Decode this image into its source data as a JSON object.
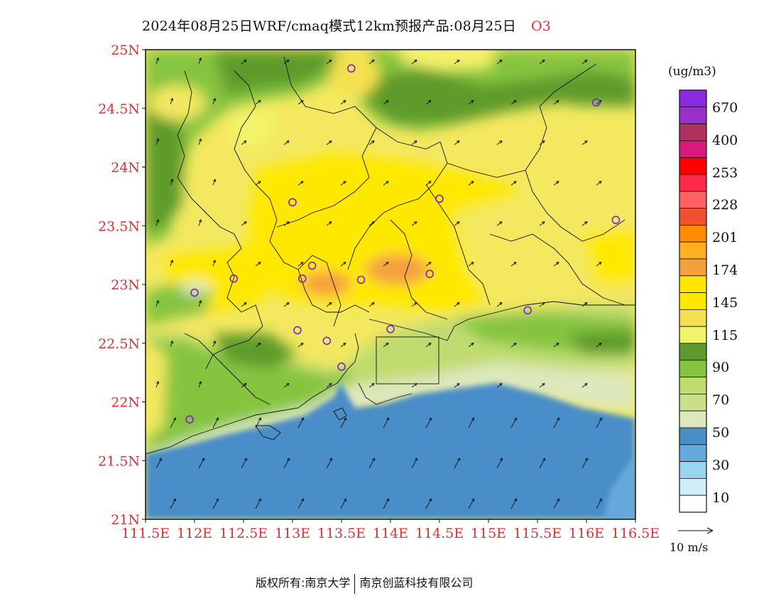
{
  "title": {
    "main": "2024年08月25日WRF/cmaq模式12km预报产品:08月25日",
    "species": "O3"
  },
  "map": {
    "lat_labels": [
      "25N",
      "24.5N",
      "24N",
      "23.5N",
      "23N",
      "22.5N",
      "22N",
      "21.5N",
      "21N"
    ],
    "lon_labels": [
      "111.5E",
      "112E",
      "112.5E",
      "113E",
      "113.5E",
      "114E",
      "114.5E",
      "115E",
      "115.5E",
      "116E",
      "116.5E"
    ],
    "axis_color": "#e03030",
    "lon_range": [
      111.5,
      116.5
    ],
    "lat_range": [
      21.0,
      25.0
    ]
  },
  "legend": {
    "unit": "(ug/m3)",
    "labels": [
      "670",
      "400",
      "253",
      "228",
      "201",
      "174",
      "145",
      "115",
      "90",
      "70",
      "50",
      "30",
      "10"
    ],
    "colors_top_to_bottom": [
      "#8a2be2",
      "#9b30c8",
      "#b03060",
      "#d81b7a",
      "#ff0000",
      "#ff2a4a",
      "#ff6060",
      "#f05030",
      "#ff8c00",
      "#ffb020",
      "#f5a040",
      "#ffe600",
      "#ffe800",
      "#f5e050",
      "#f3f36a",
      "#5e9b2c",
      "#86c440",
      "#c0dc70",
      "#c8e08a",
      "#dde8bb",
      "#4a8ec8",
      "#66aadd",
      "#99d5f0",
      "#d0eef8",
      "#ffffff"
    ]
  },
  "wind_scale": {
    "label": "10 m/s"
  },
  "stations": [
    {
      "lon": 113.6,
      "lat": 24.84
    },
    {
      "lon": 116.1,
      "lat": 24.55
    },
    {
      "lon": 113.0,
      "lat": 23.7
    },
    {
      "lon": 114.5,
      "lat": 23.73
    },
    {
      "lon": 116.3,
      "lat": 23.55
    },
    {
      "lon": 112.4,
      "lat": 23.05
    },
    {
      "lon": 113.1,
      "lat": 23.05
    },
    {
      "lon": 113.2,
      "lat": 23.16
    },
    {
      "lon": 113.7,
      "lat": 23.04
    },
    {
      "lon": 114.4,
      "lat": 23.09
    },
    {
      "lon": 112.0,
      "lat": 22.93
    },
    {
      "lon": 115.4,
      "lat": 22.78
    },
    {
      "lon": 113.05,
      "lat": 22.61
    },
    {
      "lon": 113.35,
      "lat": 22.52
    },
    {
      "lon": 114.0,
      "lat": 22.62
    },
    {
      "lon": 113.5,
      "lat": 22.3
    },
    {
      "lon": 111.95,
      "lat": 21.85
    }
  ],
  "footer": {
    "left": "版权所有:南京大学",
    "right": "南京创蓝科技有限公司"
  }
}
